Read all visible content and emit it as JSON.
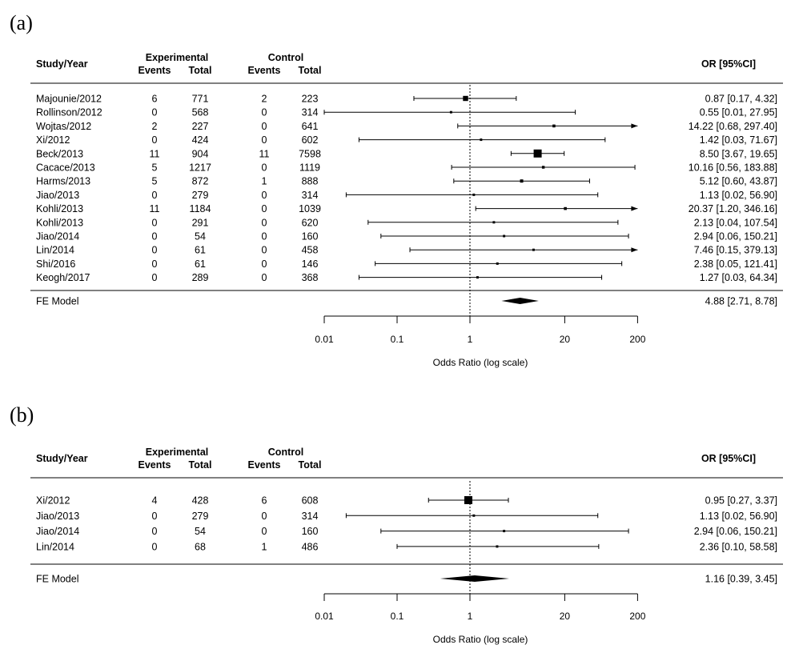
{
  "chart_data": [
    {
      "type": "forest",
      "panel_label": "(a)",
      "headers": {
        "study": "Study/Year",
        "experimental": "Experimental",
        "control": "Control",
        "events": "Events",
        "total": "Total",
        "or": "OR  [95%CI]"
      },
      "studies": [
        {
          "name": "Majounie/2012",
          "exp_events": "6",
          "exp_total": "771",
          "ctl_events": "2",
          "ctl_total": "223",
          "or": 0.87,
          "lo": 0.17,
          "hi": 4.32,
          "ci_text": "0.87 [0.17,   4.32]",
          "weight": 0.55,
          "arrow": false
        },
        {
          "name": "Rollinson/2012",
          "exp_events": "0",
          "exp_total": "568",
          "ctl_events": "0",
          "ctl_total": "314",
          "or": 0.55,
          "lo": 0.01,
          "hi": 27.95,
          "ci_text": "0.55 [0.01,  27.95]",
          "weight": 0.12,
          "arrow": false
        },
        {
          "name": "Wojtas/2012",
          "exp_events": "2",
          "exp_total": "227",
          "ctl_events": "0",
          "ctl_total": "641",
          "or": 14.22,
          "lo": 0.68,
          "hi": 297.4,
          "ci_text": "14.22 [0.68, 297.40]",
          "weight": 0.2,
          "arrow": true
        },
        {
          "name": "Xi/2012",
          "exp_events": "0",
          "exp_total": "424",
          "ctl_events": "0",
          "ctl_total": "602",
          "or": 1.42,
          "lo": 0.03,
          "hi": 71.67,
          "ci_text": "1.42 [0.03,  71.67]",
          "weight": 0.12,
          "arrow": false
        },
        {
          "name": "Beck/2013",
          "exp_events": "11",
          "exp_total": "904",
          "ctl_events": "11",
          "ctl_total": "7598",
          "or": 8.5,
          "lo": 3.67,
          "hi": 19.65,
          "ci_text": "8.50 [3.67,  19.65]",
          "weight": 1.0,
          "arrow": false
        },
        {
          "name": "Cacace/2013",
          "exp_events": "5",
          "exp_total": "1217",
          "ctl_events": "0",
          "ctl_total": "1119",
          "or": 10.16,
          "lo": 0.56,
          "hi": 183.88,
          "ci_text": "10.16 [0.56, 183.88]",
          "weight": 0.18,
          "arrow": false
        },
        {
          "name": "Harms/2013",
          "exp_events": "5",
          "exp_total": "872",
          "ctl_events": "1",
          "ctl_total": "888",
          "or": 5.12,
          "lo": 0.6,
          "hi": 43.87,
          "ci_text": "5.12 [0.60,  43.87]",
          "weight": 0.25,
          "arrow": false
        },
        {
          "name": "Jiao/2013",
          "exp_events": "0",
          "exp_total": "279",
          "ctl_events": "0",
          "ctl_total": "314",
          "or": 1.13,
          "lo": 0.02,
          "hi": 56.9,
          "ci_text": "1.13 [0.02,  56.90]",
          "weight": 0.12,
          "arrow": false
        },
        {
          "name": "Kohli/2013",
          "exp_events": "11",
          "exp_total": "1184",
          "ctl_events": "0",
          "ctl_total": "1039",
          "or": 20.37,
          "lo": 1.2,
          "hi": 346.16,
          "ci_text": "20.37 [1.20, 346.16]",
          "weight": 0.2,
          "arrow": true
        },
        {
          "name": "Kohli/2013",
          "exp_events": "0",
          "exp_total": "291",
          "ctl_events": "0",
          "ctl_total": "620",
          "or": 2.13,
          "lo": 0.04,
          "hi": 107.54,
          "ci_text": "2.13 [0.04, 107.54]",
          "weight": 0.12,
          "arrow": false
        },
        {
          "name": "Jiao/2014",
          "exp_events": "0",
          "exp_total": "54",
          "ctl_events": "0",
          "ctl_total": "160",
          "or": 2.94,
          "lo": 0.06,
          "hi": 150.21,
          "ci_text": "2.94 [0.06, 150.21]",
          "weight": 0.12,
          "arrow": false
        },
        {
          "name": "Lin/2014",
          "exp_events": "0",
          "exp_total": "61",
          "ctl_events": "0",
          "ctl_total": "458",
          "or": 7.46,
          "lo": 0.15,
          "hi": 379.13,
          "ci_text": "7.46 [0.15, 379.13]",
          "weight": 0.12,
          "arrow": true
        },
        {
          "name": "Shi/2016",
          "exp_events": "0",
          "exp_total": "61",
          "ctl_events": "0",
          "ctl_total": "146",
          "or": 2.38,
          "lo": 0.05,
          "hi": 121.41,
          "ci_text": "2.38 [0.05, 121.41]",
          "weight": 0.12,
          "arrow": false
        },
        {
          "name": "Keogh/2017",
          "exp_events": "0",
          "exp_total": "289",
          "ctl_events": "0",
          "ctl_total": "368",
          "or": 1.27,
          "lo": 0.03,
          "hi": 64.34,
          "ci_text": "1.27 [0.03,  64.34]",
          "weight": 0.12,
          "arrow": false
        }
      ],
      "summary": {
        "name": "FE Model",
        "or": 4.88,
        "lo": 2.71,
        "hi": 8.78,
        "ci_text": "4.88 [2.71,   8.78]"
      },
      "xaxis": {
        "label": "Odds Ratio (log scale)",
        "scale": "log",
        "xlim": [
          0.01,
          200
        ],
        "ticks": [
          0.01,
          0.1,
          1,
          20,
          200
        ],
        "tick_labels": [
          "0.01",
          "0.1",
          "1",
          "20",
          "200"
        ],
        "reference_line": 1
      }
    },
    {
      "type": "forest",
      "panel_label": "(b)",
      "headers": {
        "study": "Study/Year",
        "experimental": "Experimental",
        "control": "Control",
        "events": "Events",
        "total": "Total",
        "or": "OR  [95%CI]"
      },
      "studies": [
        {
          "name": "Xi/2012",
          "exp_events": "4",
          "exp_total": "428",
          "ctl_events": "6",
          "ctl_total": "608",
          "or": 0.95,
          "lo": 0.27,
          "hi": 3.37,
          "ci_text": "0.95 [0.27,   3.37]",
          "weight": 1.0,
          "arrow": false
        },
        {
          "name": "Jiao/2013",
          "exp_events": "0",
          "exp_total": "279",
          "ctl_events": "0",
          "ctl_total": "314",
          "or": 1.13,
          "lo": 0.02,
          "hi": 56.9,
          "ci_text": "1.13 [0.02,  56.90]",
          "weight": 0.12,
          "arrow": false
        },
        {
          "name": "Jiao/2014",
          "exp_events": "0",
          "exp_total": "54",
          "ctl_events": "0",
          "ctl_total": "160",
          "or": 2.94,
          "lo": 0.06,
          "hi": 150.21,
          "ci_text": "2.94 [0.06, 150.21]",
          "weight": 0.12,
          "arrow": false
        },
        {
          "name": "Lin/2014",
          "exp_events": "0",
          "exp_total": "68",
          "ctl_events": "1",
          "ctl_total": "486",
          "or": 2.36,
          "lo": 0.1,
          "hi": 58.58,
          "ci_text": "2.36 [0.10,  58.58]",
          "weight": 0.12,
          "arrow": false
        }
      ],
      "summary": {
        "name": "FE Model",
        "or": 1.16,
        "lo": 0.39,
        "hi": 3.45,
        "ci_text": "1.16 [0.39,   3.45]"
      },
      "xaxis": {
        "label": "Odds Ratio (log scale)",
        "scale": "log",
        "xlim": [
          0.01,
          200
        ],
        "ticks": [
          0.01,
          0.1,
          1,
          20,
          200
        ],
        "tick_labels": [
          "0.01",
          "0.1",
          "1",
          "20",
          "200"
        ],
        "reference_line": 1
      }
    }
  ]
}
